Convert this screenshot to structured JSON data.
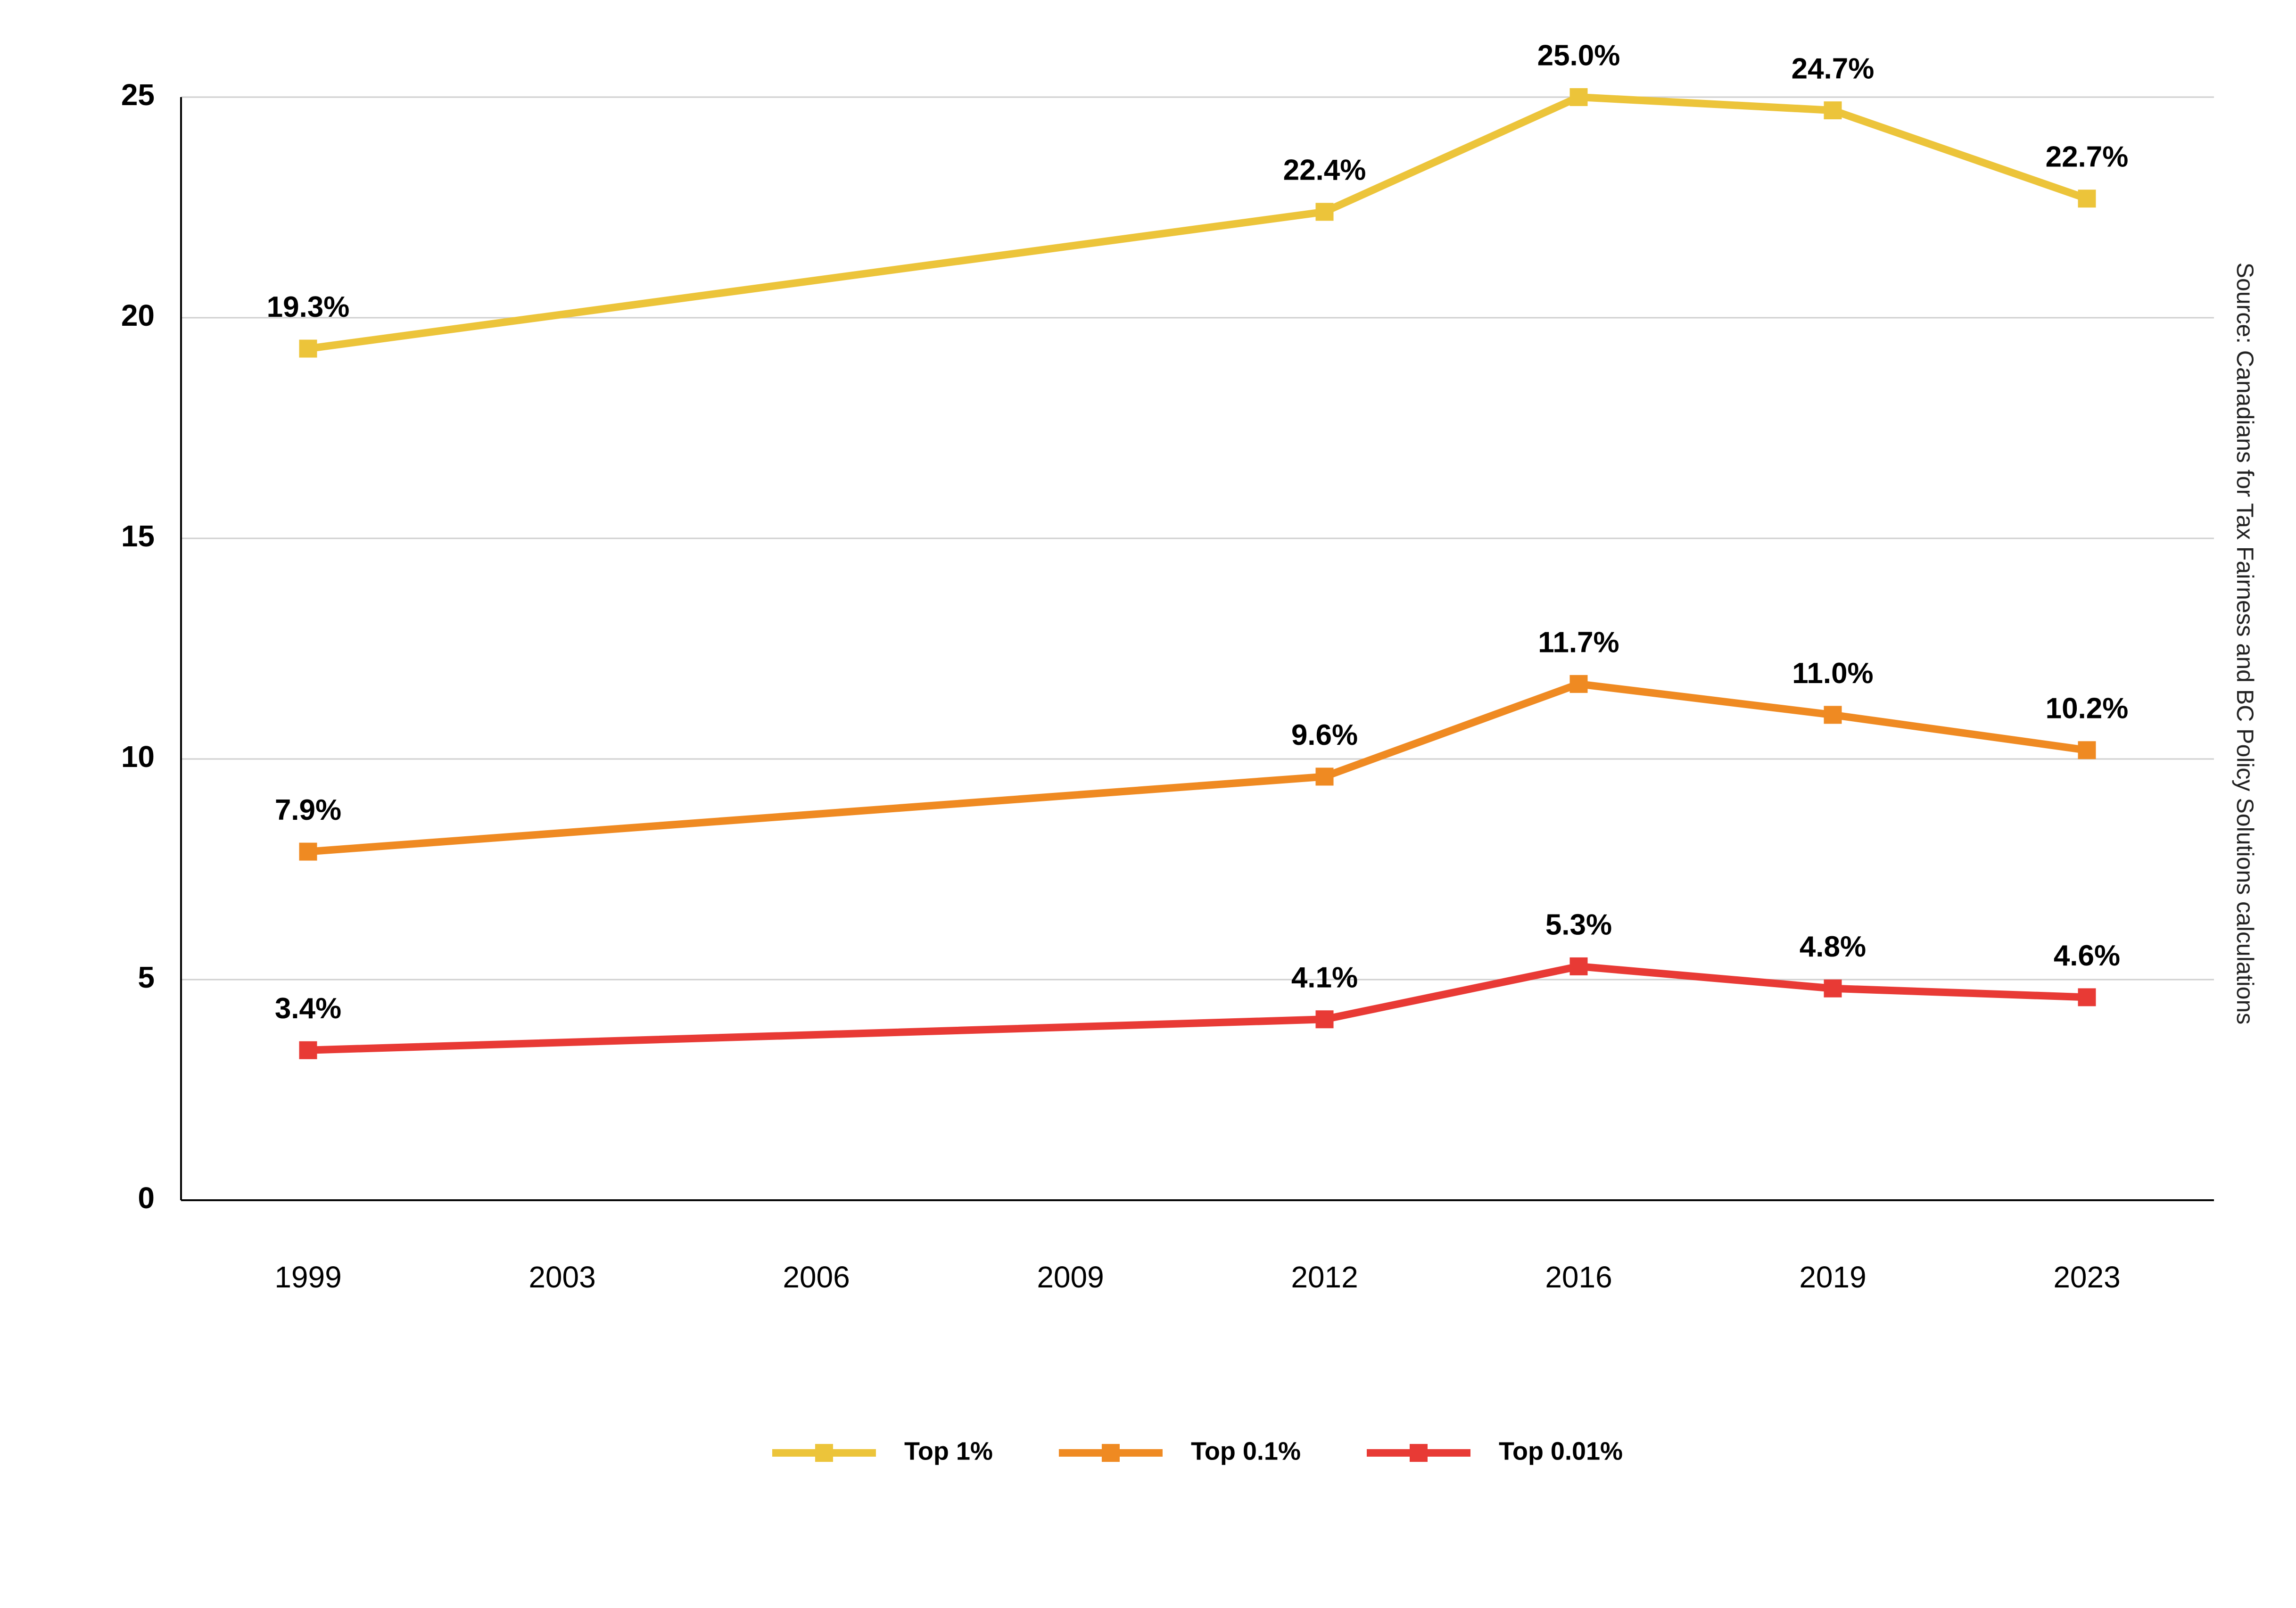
{
  "chart_data": {
    "type": "line",
    "source": "Source: Canadians for Tax Fairness and BC Policy Solutions calculations",
    "categories": [
      "1999",
      "2003",
      "2006",
      "2009",
      "2012",
      "2016",
      "2019",
      "2023"
    ],
    "series": [
      {
        "name": "Top 1%",
        "color": "#ecc43a",
        "values": [
          19.3,
          null,
          null,
          null,
          22.4,
          25.0,
          24.7,
          22.7
        ],
        "value_labels": [
          "19.3%",
          null,
          null,
          null,
          "22.4%",
          "25.0%",
          "24.7%",
          "22.7%"
        ]
      },
      {
        "name": "Top 0.1%",
        "color": "#ef8a22",
        "values": [
          7.9,
          null,
          null,
          null,
          9.6,
          11.7,
          11.0,
          10.2
        ],
        "value_labels": [
          "7.9%",
          null,
          null,
          null,
          "9.6%",
          "11.7%",
          "11.0%",
          "10.2%"
        ]
      },
      {
        "name": "Top 0.01%",
        "color": "#e83a35",
        "values": [
          3.4,
          null,
          null,
          null,
          4.1,
          5.3,
          4.8,
          4.6
        ],
        "value_labels": [
          "3.4%",
          null,
          null,
          null,
          "4.1%",
          "5.3%",
          "4.8%",
          "4.6%"
        ]
      }
    ],
    "connect_gaps": true,
    "ylim": [
      0,
      25
    ],
    "yticks": [
      0,
      5,
      10,
      15,
      20,
      25
    ],
    "grid": true,
    "legend": "bottom"
  }
}
